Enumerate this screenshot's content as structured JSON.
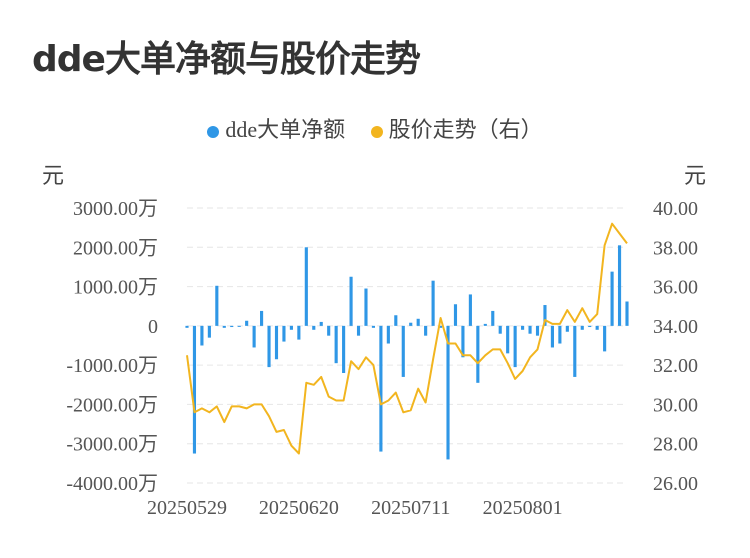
{
  "title": "dde大单净额与股价走势",
  "legend": {
    "bar_label": "dde大单净额",
    "line_label": "股价走势（右）"
  },
  "units": {
    "left": "元",
    "right": "元"
  },
  "colors": {
    "bar": "#2f97e6",
    "line": "#f2b51f",
    "grid": "#e6e6e6"
  },
  "chart_data": {
    "type": "bar",
    "title": "dde大单净额与股价走势",
    "x_tick_labels": [
      "20250529",
      "20250620",
      "20250711",
      "20250801"
    ],
    "left_axis": {
      "ylim": [
        -4000,
        3000
      ],
      "tick_values": [
        3000,
        2000,
        1000,
        0,
        -1000,
        -2000,
        -3000,
        -4000
      ],
      "tick_labels": [
        "3000.00万",
        "2000.00万",
        "1000.00万",
        "0",
        "-1000.00万",
        "-2000.00万",
        "-3000.00万",
        "-4000.00万"
      ]
    },
    "right_axis": {
      "ylim": [
        26,
        40
      ],
      "tick_values": [
        40,
        38,
        36,
        34,
        32,
        30,
        28,
        26
      ],
      "tick_labels": [
        "40.00",
        "38.00",
        "36.00",
        "34.00",
        "32.00",
        "30.00",
        "28.00",
        "26.00"
      ]
    },
    "x_tick_positions": [
      0,
      15,
      30,
      45
    ],
    "grid": true,
    "legend_position": "top-center",
    "series": [
      {
        "name": "dde大单净额",
        "type": "bar",
        "axis": "left",
        "values": [
          -50,
          -3250,
          -500,
          -300,
          1020,
          -50,
          -30,
          -20,
          130,
          -550,
          380,
          -1050,
          -850,
          -400,
          -100,
          -350,
          2000,
          -100,
          100,
          -250,
          -950,
          -1200,
          1250,
          -250,
          950,
          -50,
          -3200,
          -450,
          270,
          -1300,
          80,
          180,
          -250,
          1150,
          -50,
          -3400,
          550,
          -800,
          800,
          -1450,
          50,
          380,
          -200,
          -700,
          -1050,
          -100,
          -200,
          -250,
          530,
          -550,
          -450,
          -150,
          -1300,
          -100,
          -30,
          -100,
          -650,
          1380,
          2050,
          620
        ],
        "unit": "万元"
      },
      {
        "name": "股价走势（右）",
        "type": "line",
        "axis": "right",
        "values": [
          32.5,
          29.6,
          29.8,
          29.6,
          29.9,
          29.1,
          29.9,
          29.9,
          29.8,
          30.0,
          30.0,
          29.4,
          28.6,
          28.7,
          27.9,
          27.5,
          31.1,
          31.0,
          31.4,
          30.4,
          30.2,
          30.2,
          32.2,
          31.8,
          32.4,
          32.0,
          30.0,
          30.2,
          30.6,
          29.6,
          29.7,
          30.8,
          30.1,
          32.3,
          34.4,
          33.1,
          33.1,
          32.5,
          32.5,
          32.1,
          32.5,
          32.8,
          32.8,
          32.1,
          31.3,
          31.7,
          32.4,
          32.8,
          34.3,
          34.1,
          34.1,
          34.8,
          34.2,
          34.9,
          34.2,
          34.6,
          38.1,
          39.2,
          38.7,
          38.2
        ]
      }
    ]
  }
}
